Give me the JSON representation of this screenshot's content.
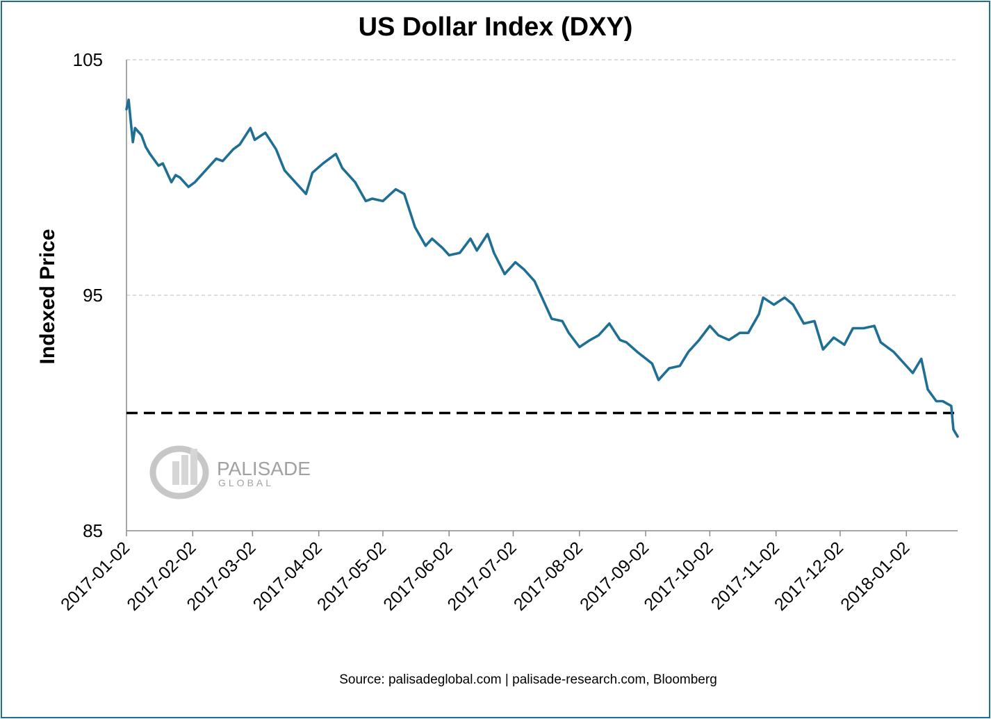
{
  "chart_data": {
    "type": "line",
    "title": "US Dollar Index (DXY)",
    "xlabel": "",
    "ylabel": "Indexed Price",
    "ylim": [
      85,
      105
    ],
    "yticks": [
      85,
      95,
      105
    ],
    "xticks": [
      "2017-01-02",
      "2017-02-02",
      "2017-03-02",
      "2017-04-02",
      "2017-05-02",
      "2017-06-02",
      "2017-07-02",
      "2017-08-02",
      "2017-09-02",
      "2017-10-02",
      "2017-11-02",
      "2017-12-02",
      "2018-01-02"
    ],
    "x_range": [
      "2017-01-02",
      "2018-01-26"
    ],
    "grid": true,
    "reference_line": {
      "value": 90,
      "style": "dashed",
      "color": "#000000"
    },
    "series": [
      {
        "name": "DXY",
        "color": "#1f6f94",
        "x": [
          "2017-01-02",
          "2017-01-03",
          "2017-01-04",
          "2017-01-05",
          "2017-01-06",
          "2017-01-09",
          "2017-01-11",
          "2017-01-13",
          "2017-01-17",
          "2017-01-19",
          "2017-01-23",
          "2017-01-25",
          "2017-01-27",
          "2017-01-31",
          "2017-02-03",
          "2017-02-08",
          "2017-02-13",
          "2017-02-16",
          "2017-02-21",
          "2017-02-24",
          "2017-03-01",
          "2017-03-03",
          "2017-03-08",
          "2017-03-13",
          "2017-03-17",
          "2017-03-22",
          "2017-03-27",
          "2017-03-30",
          "2017-04-04",
          "2017-04-10",
          "2017-04-13",
          "2017-04-19",
          "2017-04-24",
          "2017-04-27",
          "2017-05-02",
          "2017-05-08",
          "2017-05-12",
          "2017-05-17",
          "2017-05-22",
          "2017-05-25",
          "2017-05-30",
          "2017-06-02",
          "2017-06-07",
          "2017-06-12",
          "2017-06-15",
          "2017-06-20",
          "2017-06-23",
          "2017-06-28",
          "2017-07-03",
          "2017-07-07",
          "2017-07-12",
          "2017-07-17",
          "2017-07-20",
          "2017-07-25",
          "2017-07-28",
          "2017-08-02",
          "2017-08-07",
          "2017-08-11",
          "2017-08-16",
          "2017-08-21",
          "2017-08-24",
          "2017-08-29",
          "2017-09-05",
          "2017-09-08",
          "2017-09-13",
          "2017-09-18",
          "2017-09-22",
          "2017-09-27",
          "2017-10-02",
          "2017-10-06",
          "2017-10-11",
          "2017-10-16",
          "2017-10-20",
          "2017-10-25",
          "2017-10-27",
          "2017-11-01",
          "2017-11-06",
          "2017-11-10",
          "2017-11-15",
          "2017-11-20",
          "2017-11-24",
          "2017-11-29",
          "2017-12-04",
          "2017-12-08",
          "2017-12-13",
          "2017-12-18",
          "2017-12-21",
          "2017-12-27",
          "2018-01-02",
          "2018-01-05",
          "2018-01-09",
          "2018-01-12",
          "2018-01-16",
          "2018-01-19",
          "2018-01-23",
          "2018-01-24",
          "2018-01-26"
        ],
        "values": [
          102.9,
          103.3,
          102.4,
          101.5,
          102.1,
          101.8,
          101.3,
          101.0,
          100.5,
          100.6,
          99.8,
          100.1,
          100.0,
          99.6,
          99.8,
          100.3,
          100.8,
          100.7,
          101.2,
          101.4,
          102.1,
          101.6,
          101.9,
          101.2,
          100.3,
          99.8,
          99.3,
          100.2,
          100.6,
          101.0,
          100.4,
          99.8,
          99.0,
          99.1,
          99.0,
          99.5,
          99.3,
          97.9,
          97.1,
          97.4,
          97.0,
          96.7,
          96.8,
          97.4,
          96.9,
          97.6,
          96.8,
          95.9,
          96.4,
          96.1,
          95.6,
          94.6,
          94.0,
          93.9,
          93.4,
          92.8,
          93.1,
          93.3,
          93.8,
          93.1,
          93.0,
          92.6,
          92.1,
          91.4,
          91.9,
          92.0,
          92.6,
          93.1,
          93.7,
          93.3,
          93.1,
          93.4,
          93.4,
          94.2,
          94.9,
          94.6,
          94.9,
          94.6,
          93.8,
          93.9,
          92.7,
          93.2,
          92.9,
          93.6,
          93.6,
          93.7,
          93.0,
          92.6,
          92.0,
          91.7,
          92.3,
          91.0,
          90.5,
          90.5,
          90.3,
          89.3,
          89.0
        ]
      }
    ]
  },
  "watermark": {
    "brand": "PALISADE",
    "sub": "GLOBAL"
  },
  "footer": {
    "source": "Source: palisadeglobal.com | palisade-research.com, Bloomberg"
  }
}
